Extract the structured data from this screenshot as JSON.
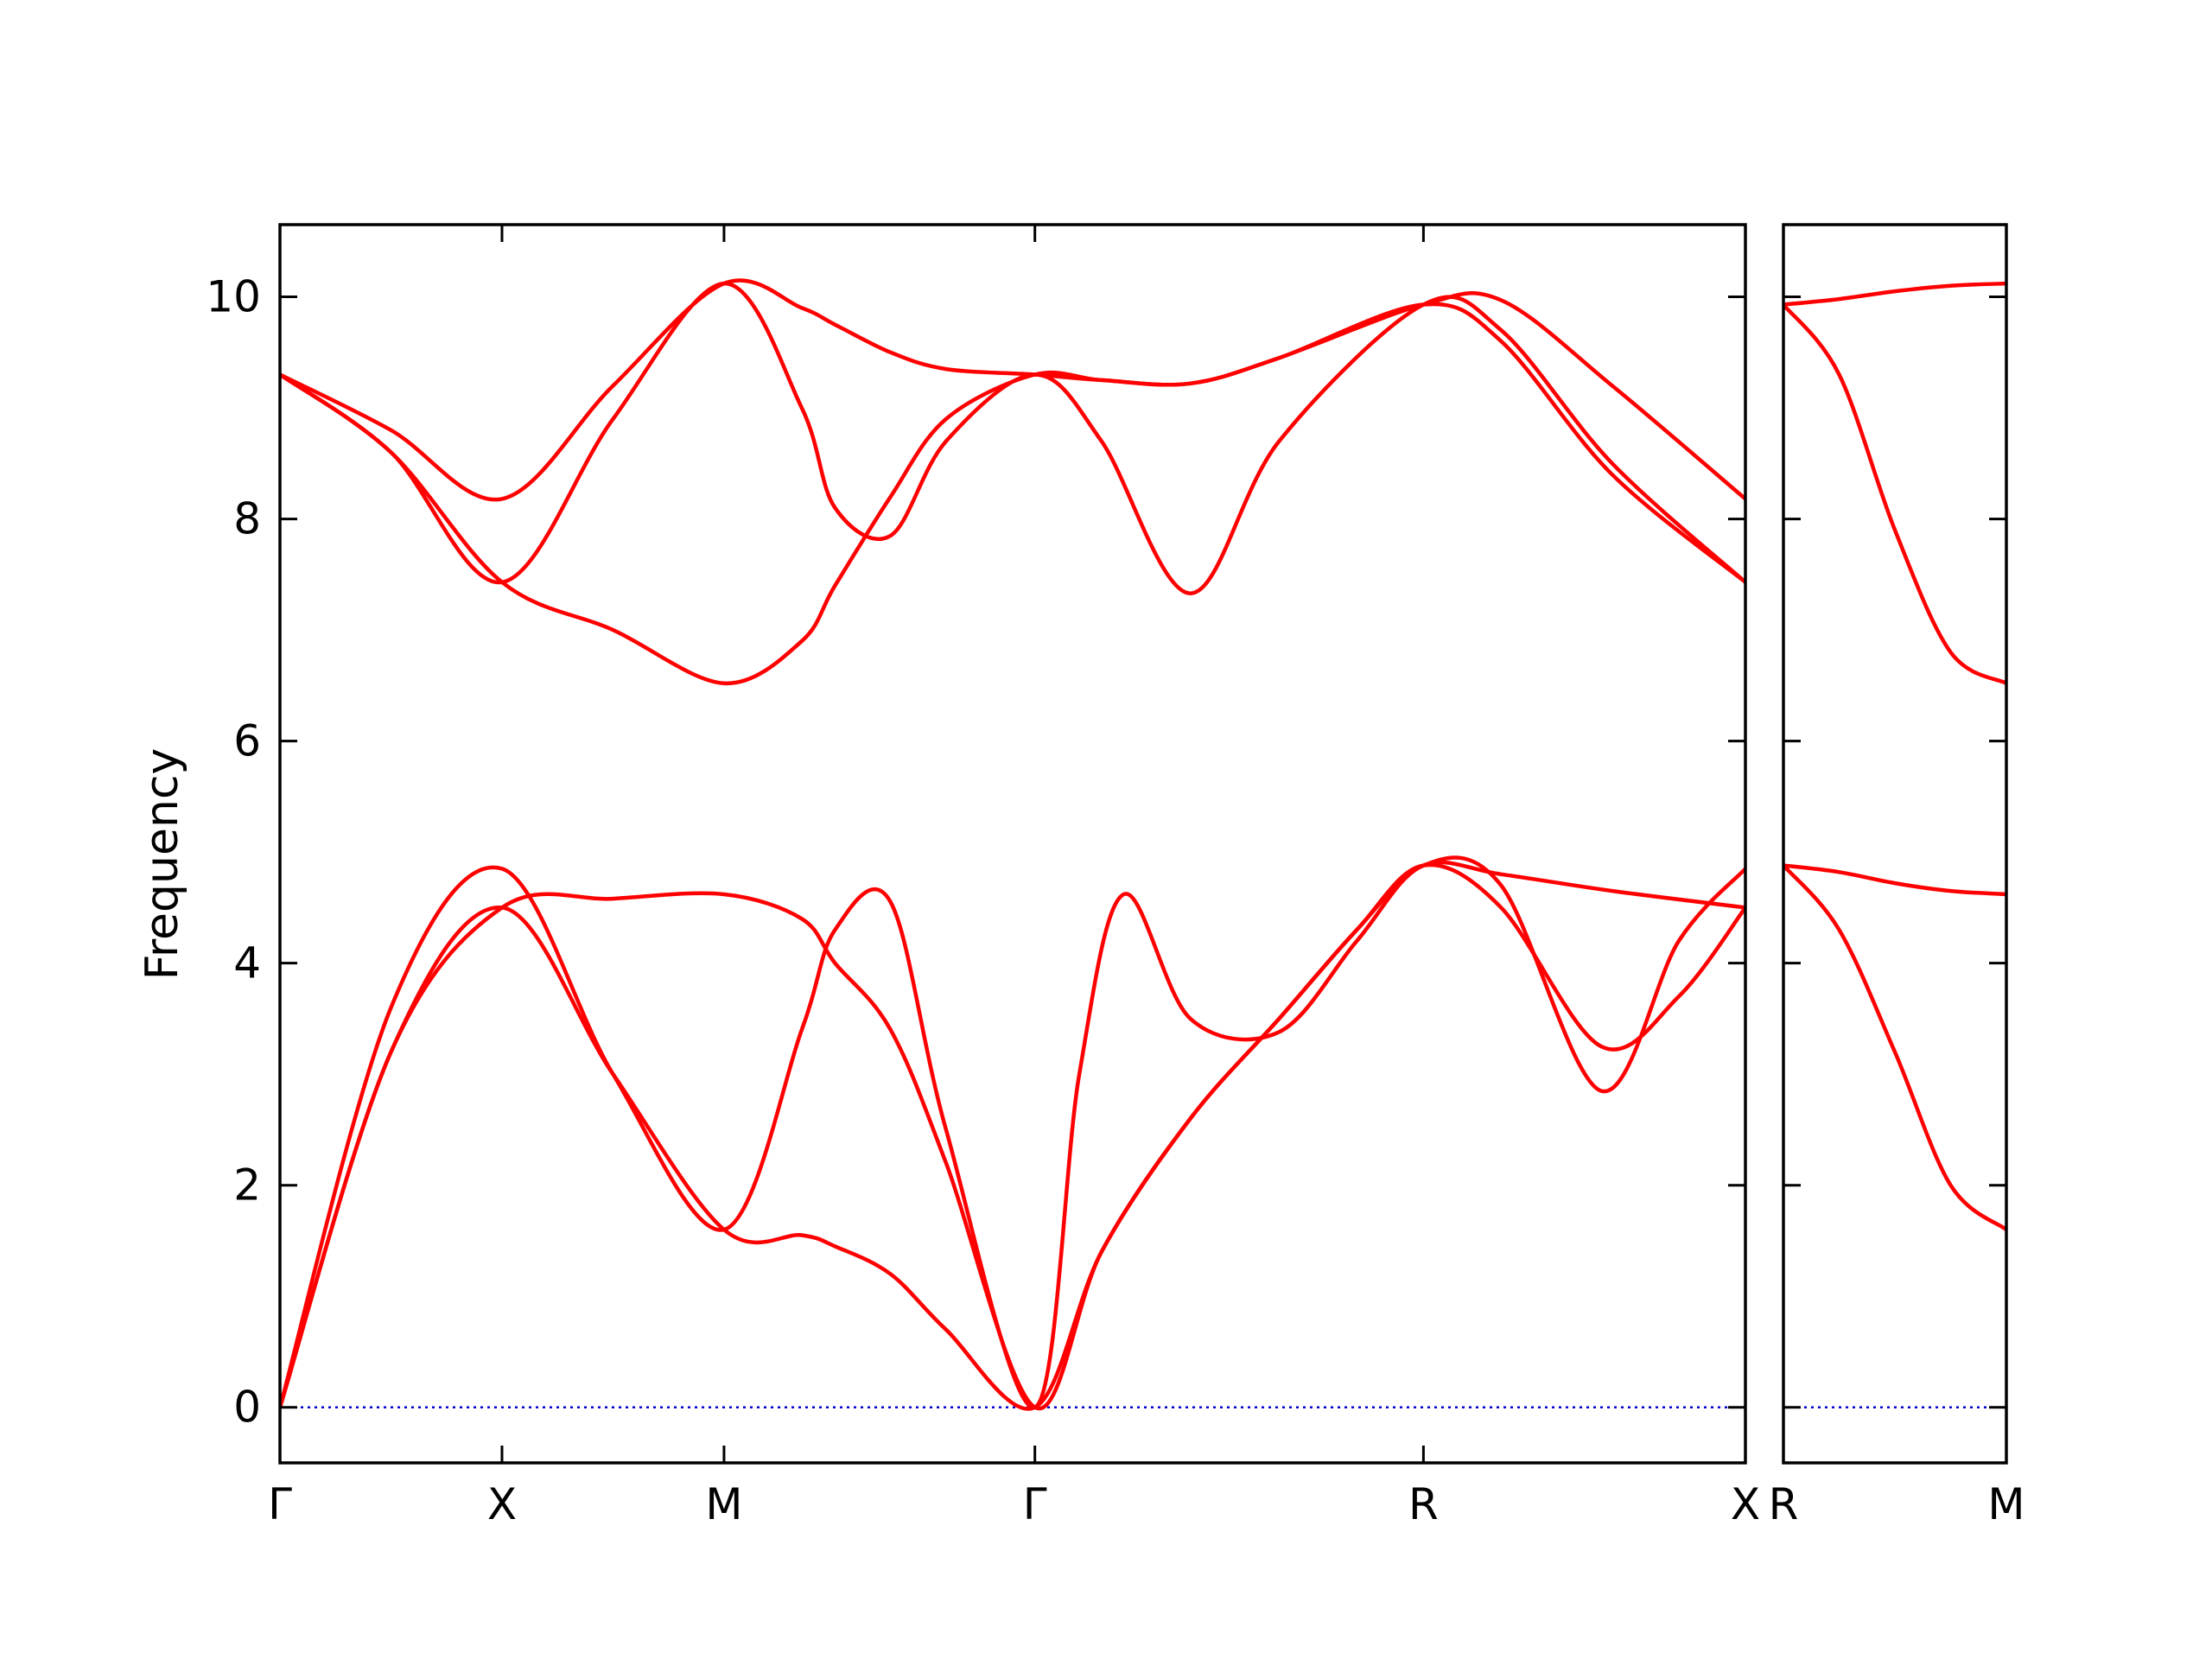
{
  "chart_data": {
    "type": "line",
    "title": "",
    "ylabel": "Frequency",
    "xlabel": "",
    "ylim": [
      -0.5,
      10.65
    ],
    "yticks": [
      0,
      2,
      4,
      6,
      8,
      10
    ],
    "grid": false,
    "colors": {
      "bands": "#ff0000",
      "zero_line": "#0000cc",
      "frame": "#000000"
    },
    "panels": [
      {
        "xlim": [
          0,
          6.6
        ],
        "xticks": [
          {
            "x": 0,
            "label": "Γ"
          },
          {
            "x": 1,
            "label": "X"
          },
          {
            "x": 2,
            "label": "M"
          },
          {
            "x": 3.4,
            "label": "Γ"
          },
          {
            "x": 5.15,
            "label": "R"
          },
          {
            "x": 6.6,
            "label": "X"
          }
        ],
        "series": [
          {
            "x": [
              0,
              0.5,
              1,
              1.5,
              2,
              2.35,
              2.5,
              2.75,
              3.0,
              3.4,
              3.7,
              4.1,
              4.5,
              5.15,
              5.5,
              6.0,
              6.6
            ],
            "y": [
              9.3,
              8.8,
              8.18,
              9.2,
              10.12,
              9.9,
              9.75,
              9.5,
              9.35,
              9.3,
              9.25,
              9.22,
              9.45,
              9.93,
              9.97,
              9.2,
              8.18
            ]
          },
          {
            "x": [
              0,
              0.5,
              1,
              1.5,
              2,
              2.35,
              2.5,
              2.75,
              3.0,
              3.4,
              3.7,
              4.1,
              4.5,
              5.15,
              5.5,
              6.0,
              6.6
            ],
            "y": [
              9.3,
              8.6,
              7.43,
              8.9,
              10.12,
              9.0,
              8.1,
              7.85,
              8.7,
              9.3,
              8.7,
              7.33,
              8.7,
              9.93,
              9.7,
              8.5,
              7.43
            ]
          },
          {
            "x": [
              0,
              0.5,
              1,
              1.5,
              2,
              2.35,
              2.5,
              2.75,
              3.0,
              3.4,
              3.7,
              4.1,
              4.5,
              5.15,
              5.5,
              6.0,
              6.6
            ],
            "y": [
              9.3,
              8.6,
              7.43,
              7.0,
              6.52,
              6.9,
              7.4,
              8.2,
              8.9,
              9.3,
              9.25,
              9.22,
              9.45,
              9.93,
              9.6,
              8.4,
              7.43
            ]
          },
          {
            "x": [
              0,
              0.5,
              1,
              1.5,
              2,
              2.35,
              2.5,
              2.75,
              3.0,
              3.4,
              3.6,
              3.8,
              4.1,
              4.5,
              4.85,
              5.15,
              5.5,
              5.95,
              6.3,
              6.6
            ],
            "y": [
              0.0,
              3.6,
              4.85,
              3.0,
              1.6,
              3.4,
              4.3,
              4.55,
              2.5,
              0.0,
              3.0,
              4.62,
              3.5,
              3.38,
              4.2,
              4.88,
              4.7,
              2.85,
              4.2,
              4.85
            ]
          },
          {
            "x": [
              0,
              0.5,
              1,
              1.5,
              2,
              2.35,
              2.5,
              2.75,
              3.0,
              3.4,
              3.7,
              4.1,
              4.5,
              4.85,
              5.15,
              5.5,
              5.95,
              6.3,
              6.6
            ],
            "y": [
              0.0,
              3.2,
              4.5,
              3.0,
              1.6,
              1.55,
              1.45,
              1.2,
              0.7,
              0.0,
              1.4,
              2.6,
              3.5,
              4.3,
              4.88,
              4.5,
              3.25,
              3.7,
              4.5
            ]
          },
          {
            "x": [
              0,
              0.5,
              1,
              1.5,
              2,
              2.35,
              2.5,
              2.75,
              3.0,
              3.4,
              3.7,
              4.1,
              4.5,
              4.85,
              5.15,
              5.5,
              6.0,
              6.6
            ],
            "y": [
              0.0,
              3.2,
              4.5,
              4.58,
              4.62,
              4.4,
              4.0,
              3.4,
              2.2,
              0.0,
              1.4,
              2.6,
              3.5,
              4.3,
              4.88,
              4.8,
              4.65,
              4.5
            ]
          }
        ]
      },
      {
        "xlim": [
          0,
          1
        ],
        "xticks": [
          {
            "x": 0,
            "label": "R"
          },
          {
            "x": 1,
            "label": "M"
          }
        ],
        "series": [
          {
            "x": [
              0,
              0.25,
              0.5,
              0.75,
              1
            ],
            "y": [
              9.93,
              9.98,
              10.05,
              10.1,
              10.12
            ]
          },
          {
            "x": [
              0,
              0.25,
              0.5,
              0.75,
              1
            ],
            "y": [
              9.93,
              9.3,
              7.9,
              6.8,
              6.52
            ]
          },
          {
            "x": [
              0,
              0.25,
              0.5,
              0.75,
              1
            ],
            "y": [
              4.88,
              4.82,
              4.72,
              4.65,
              4.62
            ]
          },
          {
            "x": [
              0,
              0.25,
              0.5,
              0.75,
              1
            ],
            "y": [
              4.88,
              4.3,
              3.2,
              2.0,
              1.6
            ]
          }
        ]
      }
    ]
  }
}
